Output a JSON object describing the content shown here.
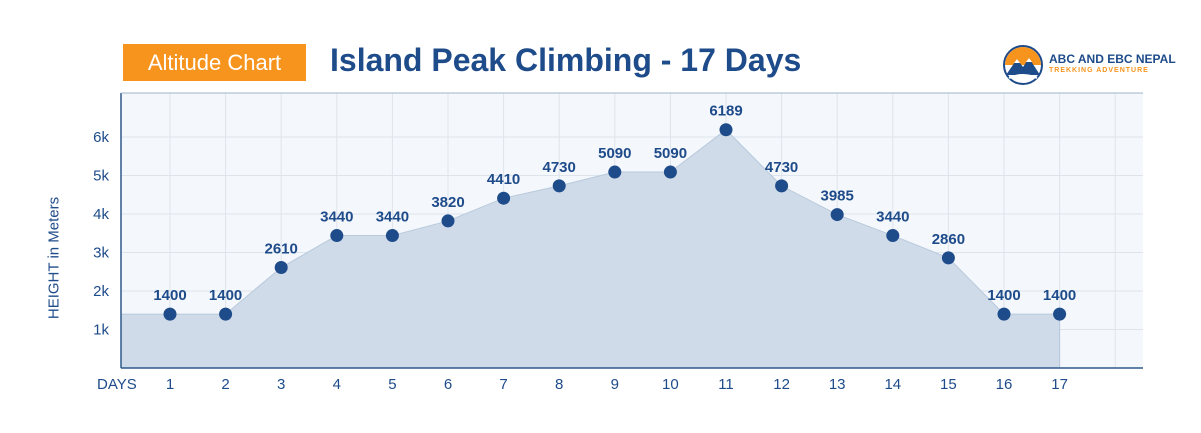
{
  "header": {
    "badge": "Altitude Chart",
    "title": "Island Peak Climbing - 17 Days"
  },
  "logo": {
    "line1": "ABC AND EBC NEPAL",
    "line2": "TREKKING ADVENTURE"
  },
  "colors": {
    "accent": "#f7941d",
    "primary": "#1e4b8a",
    "fill": "#cfdbe9",
    "grid": "#dde4ec"
  },
  "chart_data": {
    "type": "area",
    "xlabel": "DAYS",
    "ylabel": "HEIGHT in Meters",
    "x": [
      1,
      2,
      3,
      4,
      5,
      6,
      7,
      8,
      9,
      10,
      11,
      12,
      13,
      14,
      15,
      16,
      17
    ],
    "values": [
      1400,
      1400,
      2610,
      3440,
      3440,
      3820,
      4410,
      4730,
      5090,
      5090,
      6189,
      4730,
      3985,
      3440,
      2860,
      1400,
      1400
    ],
    "yticks": [
      1000,
      2000,
      3000,
      4000,
      5000,
      6000
    ],
    "ytick_labels": [
      "1k",
      "2k",
      "3k",
      "4k",
      "5k",
      "6k"
    ],
    "ylim": [
      0,
      7000
    ],
    "grid": true
  }
}
